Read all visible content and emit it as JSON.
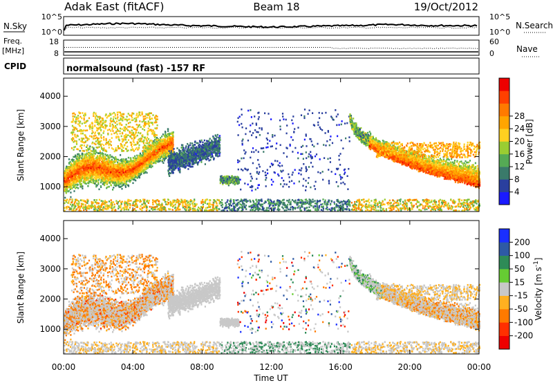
{
  "header": {
    "station": "Adak East (fitACF)",
    "beam": "Beam 18",
    "date": "19/Oct/2012"
  },
  "strip_nsky": {
    "left_label": "N.Sky",
    "right_label": "N.Search",
    "left_ticks": [
      "10^5",
      "10^0"
    ],
    "right_ticks": [
      "10^5",
      "10^0"
    ]
  },
  "strip_freq": {
    "left_label": "Freq.",
    "left_unit": "[MHz]",
    "right_label": "Nave",
    "left_ticks": [
      "18",
      "8"
    ],
    "right_ticks": [
      "60",
      "0"
    ]
  },
  "cpid": {
    "label": "CPID",
    "value": "normalsound (fast) -157 RF"
  },
  "chart_data": [
    {
      "type": "heatmap",
      "panel": "power",
      "ylabel": "Slant Range [km]",
      "ylim": [
        180,
        4600
      ],
      "yticks": [
        "1000",
        "2000",
        "3000",
        "4000"
      ],
      "colorbar_label": "Power [dB]",
      "colorbar_ticks": [
        "4",
        "8",
        "12",
        "16",
        "20",
        "24",
        "28"
      ],
      "colorbar_colors": [
        "#1a1aff",
        "#2a3f9e",
        "#3a7a6a",
        "#55aa55",
        "#9acd32",
        "#ffd020",
        "#ffa500",
        "#ff7a00",
        "#ff4000",
        "#ee0000"
      ]
    },
    {
      "type": "heatmap",
      "panel": "velocity",
      "ylabel": "Slant Range [km]",
      "ylim": [
        180,
        4600
      ],
      "yticks": [
        "1000",
        "2000",
        "3000",
        "4000"
      ],
      "colorbar_label": "Velocity [m s",
      "colorbar_unit_sup": "-1",
      "colorbar_unit_close": "]",
      "colorbar_ticks": [
        "200",
        "100",
        "50",
        "15",
        "-15",
        "-50",
        "-100",
        "-200"
      ],
      "colorbar_colors": [
        "#1a2fff",
        "#2e5aa5",
        "#2e8b57",
        "#66cc33",
        "#c8c8c8",
        "#ffb020",
        "#ff7a00",
        "#ff3000",
        "#ee0000"
      ]
    }
  ],
  "time_axis": {
    "label": "Time UT",
    "ticks": [
      "00:00",
      "04:00",
      "08:00",
      "12:00",
      "16:00",
      "20:00",
      "00:00"
    ]
  },
  "colors": {
    "ground_scatter": "#c8c8c8"
  }
}
